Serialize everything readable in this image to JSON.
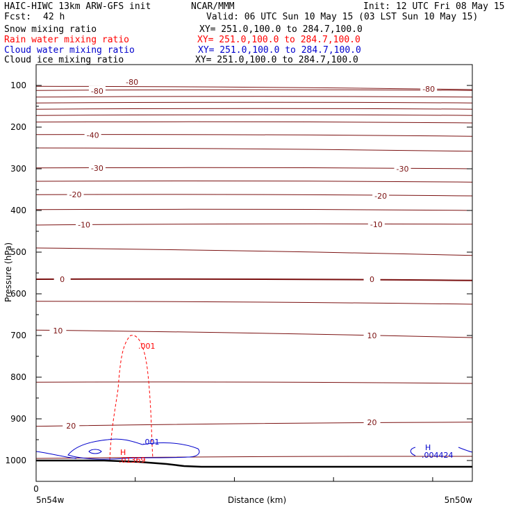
{
  "header": {
    "title_left": "HAIC-HIWC 13km ARW-GFS init",
    "org": "NCAR/MMM",
    "init": "Init: 12 UTC Fri 08 May 15",
    "fcst_label": "Fcst:",
    "fcst_value": "42 h",
    "valid": "Valid: 06 UTC Sun 10 May 15 (03 LST Sun 10 May 15)"
  },
  "fields": [
    {
      "name": "Snow mixing ratio",
      "xy": "XY= 251.0,100.0 to 284.7,100.0",
      "color": "#000000"
    },
    {
      "name": "Rain water mixing ratio",
      "xy": "XY= 251.0,100.0 to 284.7,100.0",
      "color": "#ff0000"
    },
    {
      "name": "Cloud water mixing ratio",
      "xy": "XY= 251.0,100.0 to 284.7,100.0",
      "color": "#0000cc"
    },
    {
      "name": "Cloud ice mixing ratio",
      "xy": "XY= 251.0,100.0 to 284.7,100.0",
      "color": "#000000"
    }
  ],
  "chart_data": {
    "type": "line",
    "ylabel": "Pressure (hPa)",
    "xlabel": "Distance (km)",
    "x_start_label": "5n54w",
    "x_end_label": "5n50w",
    "x_origin_label": "0",
    "yticks": [
      100,
      200,
      300,
      400,
      500,
      600,
      700,
      800,
      900,
      1000
    ],
    "ylim": [
      1050,
      50
    ],
    "xlim": [
      0,
      100
    ],
    "isotherm_color": "#7a1010",
    "isotherms": [
      {
        "label": "-80",
        "y": [
          102,
          110
        ],
        "labels_at": [
          [
            22,
            92
          ],
          [
            90,
            108
          ]
        ]
      },
      {
        "label": "-80",
        "y": [
          112,
          112
        ],
        "labels_at": [
          [
            14,
            113
          ]
        ]
      },
      {
        "label": "",
        "y": [
          128,
          128
        ],
        "labels_at": []
      },
      {
        "label": "",
        "y": [
          142,
          142
        ],
        "labels_at": []
      },
      {
        "label": "",
        "y": [
          157,
          157
        ],
        "labels_at": []
      },
      {
        "label": "",
        "y": [
          172,
          172
        ],
        "labels_at": []
      },
      {
        "label": "",
        "y": [
          188,
          190
        ],
        "labels_at": []
      },
      {
        "label": "-40",
        "y": [
          218,
          222
        ],
        "labels_at": [
          [
            13,
            219
          ]
        ]
      },
      {
        "label": "",
        "y": [
          250,
          258
        ],
        "labels_at": []
      },
      {
        "label": "-30",
        "y": [
          298,
          300
        ],
        "labels_at": [
          [
            14,
            298
          ],
          [
            84,
            300
          ]
        ]
      },
      {
        "label": "",
        "y": [
          330,
          332
        ],
        "labels_at": []
      },
      {
        "label": "-20",
        "y": [
          362,
          365
        ],
        "labels_at": [
          [
            9,
            362
          ],
          [
            79,
            365
          ]
        ]
      },
      {
        "label": "",
        "y": [
          398,
          400
        ],
        "labels_at": []
      },
      {
        "label": "-10",
        "y": [
          435,
          433
        ],
        "labels_at": [
          [
            11,
            434
          ],
          [
            78,
            433
          ]
        ]
      },
      {
        "label": "",
        "y": [
          490,
          508
        ],
        "labels_at": []
      },
      {
        "label": "0",
        "y": [
          565,
          568
        ],
        "labels_at": [
          [
            6,
            565
          ],
          [
            77,
            565
          ]
        ]
      },
      {
        "label": "",
        "y": [
          618,
          625
        ],
        "labels_at": []
      },
      {
        "label": "10",
        "y": [
          687,
          705
        ],
        "labels_at": [
          [
            5,
            688
          ],
          [
            77,
            700
          ]
        ]
      },
      {
        "label": "",
        "y": [
          812,
          815
        ],
        "labels_at": []
      },
      {
        "label": "20",
        "y": [
          918,
          908
        ],
        "labels_at": [
          [
            8,
            917
          ],
          [
            77,
            908
          ]
        ]
      },
      {
        "label": "",
        "y": [
          995,
          990
        ],
        "labels_at": []
      }
    ],
    "rain_contour": {
      "label": ".001",
      "peak_label": "H",
      "peak_value": ".01369",
      "color": "#ff0000"
    },
    "cloud_contour": {
      "label": ".001",
      "peak_label": "H",
      "peak_value": ".004424",
      "color": "#0000cc"
    }
  }
}
